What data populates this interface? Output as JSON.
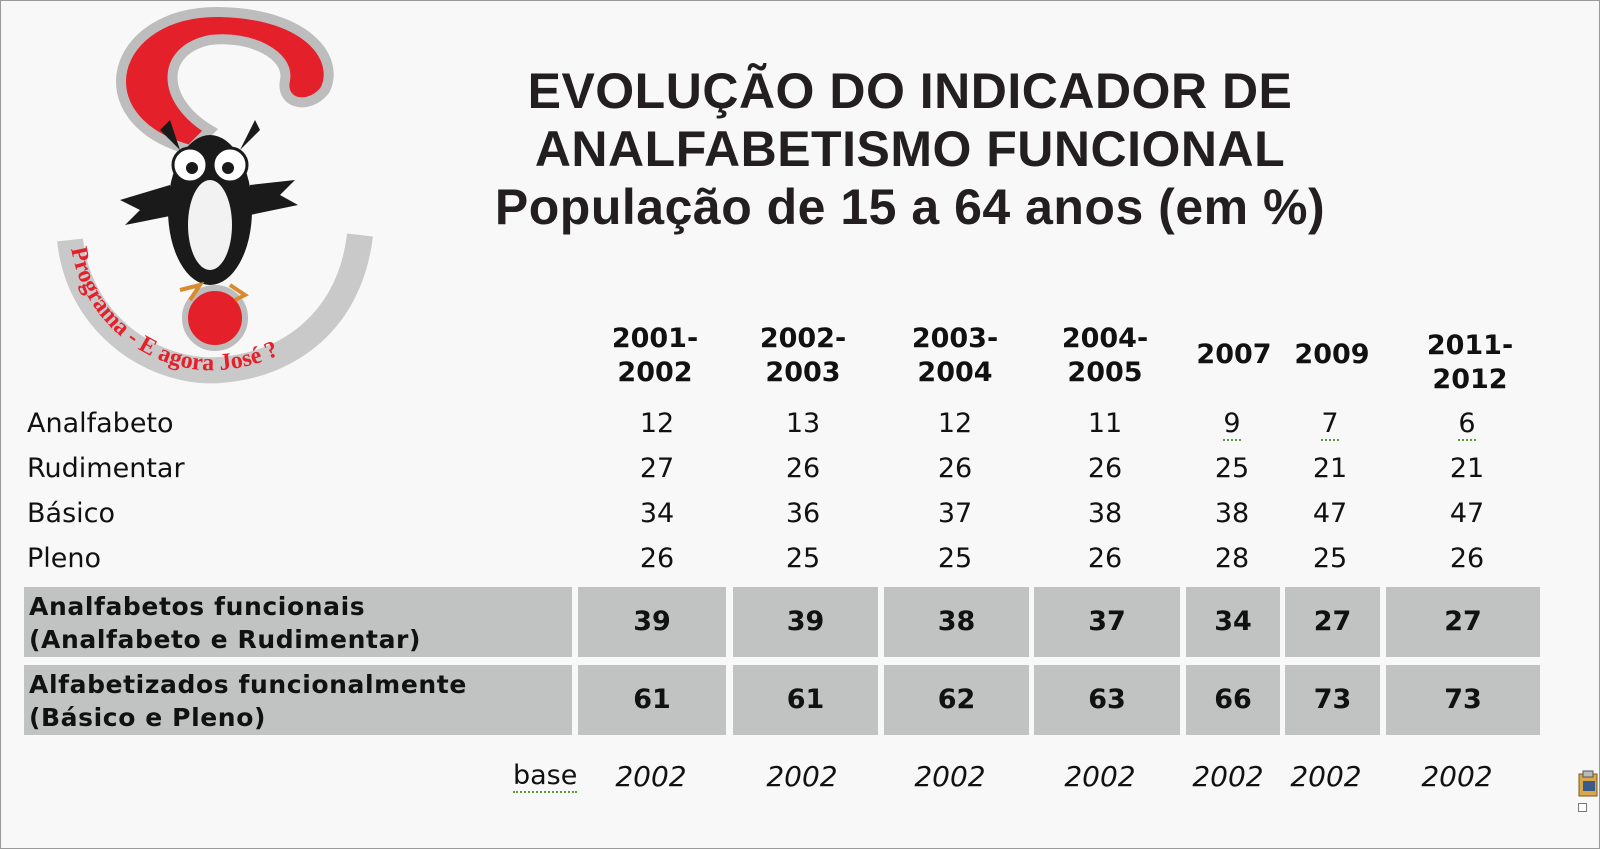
{
  "title": {
    "line1": "EVOLUÇÃO DO INDICADOR DE",
    "line2": "ANALFABETISMO FUNCIONAL",
    "line3": "População de 15 a 64 anos (em %)"
  },
  "logo": {
    "text": "Programa - E agora José ?"
  },
  "table": {
    "years": [
      {
        "top": "2001-",
        "bottom": "2002"
      },
      {
        "top": "2002-",
        "bottom": "2003"
      },
      {
        "top": "2003-",
        "bottom": "2004"
      },
      {
        "top": "2004-",
        "bottom": "2005"
      },
      {
        "top": "",
        "bottom": "2007"
      },
      {
        "top": "",
        "bottom": "2009"
      },
      {
        "top": "2011-",
        "bottom": "2012"
      }
    ],
    "rows": [
      {
        "label": "Analfabeto",
        "values": [
          "12",
          "13",
          "12",
          "11",
          "9",
          "7",
          "6"
        ]
      },
      {
        "label": "Rudimentar",
        "values": [
          "27",
          "26",
          "26",
          "26",
          "25",
          "21",
          "21"
        ]
      },
      {
        "label": "Básico",
        "values": [
          "34",
          "36",
          "37",
          "38",
          "38",
          "47",
          "47"
        ]
      },
      {
        "label": "Pleno",
        "values": [
          "26",
          "25",
          "25",
          "26",
          "28",
          "25",
          "26"
        ]
      }
    ],
    "summary": [
      {
        "label1": "Analfabetos funcionais",
        "label2": "(Analfabeto e Rudimentar)",
        "values": [
          "39",
          "39",
          "38",
          "37",
          "34",
          "27",
          "27"
        ]
      },
      {
        "label1": "Alfabetizados funcionalmente",
        "label2": "(Básico e Pleno)",
        "values": [
          "61",
          "61",
          "62",
          "63",
          "66",
          "73",
          "73"
        ]
      }
    ],
    "base": {
      "label": "base",
      "values": [
        "2002",
        "2002",
        "2002",
        "2002",
        "2002",
        "2002",
        "2002"
      ]
    }
  },
  "colors": {
    "band": "#c0c3c2",
    "logo_red": "#e4202a",
    "title": "#231f20"
  }
}
